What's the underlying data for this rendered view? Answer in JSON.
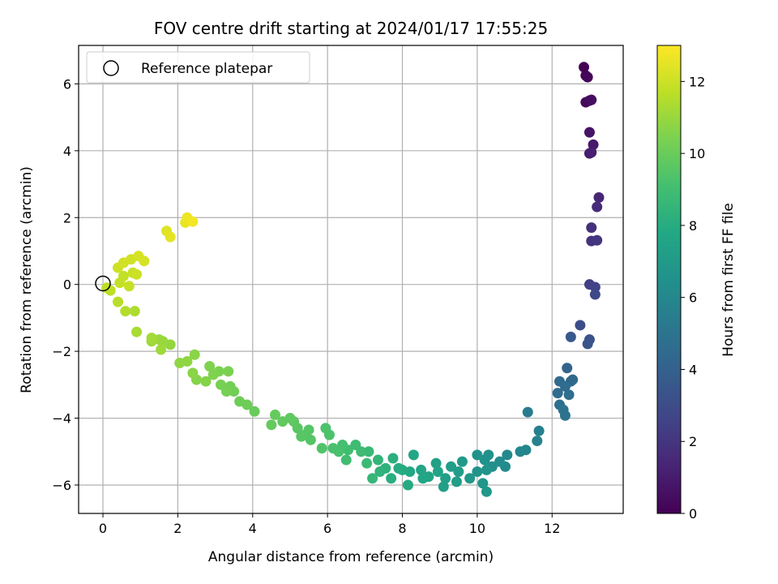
{
  "chart_data": {
    "type": "scatter",
    "title": "FOV centre drift starting at 2024/01/17 17:55:25",
    "xlabel": "Angular distance from reference (arcmin)",
    "ylabel": "Rotation from reference (arcmin)",
    "xlim": [
      -0.65,
      13.9
    ],
    "ylim": [
      -6.85,
      7.15
    ],
    "xticks": [
      0,
      2,
      4,
      6,
      8,
      10,
      12
    ],
    "yticks": [
      -6,
      -4,
      -2,
      0,
      2,
      4,
      6
    ],
    "grid": true,
    "legend": {
      "position": "top-left",
      "entries": [
        "Reference platepar"
      ]
    },
    "reference_point": {
      "x": 0,
      "y": 0
    },
    "colorbar": {
      "label": "Hours from first FF file",
      "range": [
        0,
        13
      ],
      "ticks": [
        0,
        2,
        4,
        6,
        8,
        10,
        12
      ],
      "colormap": "viridis"
    },
    "points": [
      [
        12.85,
        6.5,
        0.0
      ],
      [
        12.9,
        6.25,
        0.1
      ],
      [
        12.95,
        6.2,
        0.2
      ],
      [
        12.9,
        5.45,
        0.3
      ],
      [
        13.0,
        5.5,
        0.4
      ],
      [
        13.05,
        5.52,
        0.5
      ],
      [
        13.0,
        4.55,
        0.7
      ],
      [
        13.1,
        4.18,
        0.9
      ],
      [
        13.0,
        3.92,
        1.0
      ],
      [
        13.05,
        3.95,
        1.1
      ],
      [
        13.25,
        2.6,
        1.4
      ],
      [
        13.2,
        2.32,
        1.6
      ],
      [
        13.05,
        1.7,
        1.8
      ],
      [
        13.05,
        1.3,
        1.9
      ],
      [
        13.2,
        1.32,
        2.0
      ],
      [
        13.0,
        0.0,
        2.4
      ],
      [
        13.15,
        -0.08,
        2.6
      ],
      [
        13.15,
        -0.3,
        2.8
      ],
      [
        12.75,
        -1.22,
        3.1
      ],
      [
        13.0,
        -1.65,
        3.3
      ],
      [
        12.95,
        -1.78,
        3.4
      ],
      [
        12.5,
        -1.57,
        3.6
      ],
      [
        12.4,
        -2.5,
        4.1
      ],
      [
        12.5,
        -2.9,
        4.3
      ],
      [
        12.55,
        -2.85,
        4.4
      ],
      [
        12.2,
        -2.9,
        4.5
      ],
      [
        12.35,
        -3.05,
        4.6
      ],
      [
        12.15,
        -3.25,
        4.6
      ],
      [
        12.45,
        -3.3,
        4.7
      ],
      [
        12.2,
        -3.6,
        4.8
      ],
      [
        12.3,
        -3.75,
        4.9
      ],
      [
        12.35,
        -3.92,
        5.0
      ],
      [
        11.35,
        -3.82,
        5.4
      ],
      [
        11.65,
        -4.38,
        5.6
      ],
      [
        11.6,
        -4.68,
        5.7
      ],
      [
        11.3,
        -4.95,
        5.9
      ],
      [
        11.15,
        -5.0,
        6.0
      ],
      [
        10.8,
        -5.1,
        6.1
      ],
      [
        10.75,
        -5.45,
        6.2
      ],
      [
        10.6,
        -5.3,
        6.3
      ],
      [
        10.4,
        -5.45,
        6.4
      ],
      [
        10.2,
        -5.25,
        6.5
      ],
      [
        10.0,
        -5.1,
        6.6
      ],
      [
        10.3,
        -5.1,
        6.5
      ],
      [
        10.0,
        -5.6,
        6.6
      ],
      [
        10.25,
        -5.55,
        6.7
      ],
      [
        10.15,
        -5.95,
        6.8
      ],
      [
        10.25,
        -6.2,
        6.9
      ],
      [
        9.8,
        -5.8,
        6.9
      ],
      [
        9.6,
        -5.3,
        7.0
      ],
      [
        9.5,
        -5.6,
        7.1
      ],
      [
        9.45,
        -5.9,
        7.2
      ],
      [
        9.3,
        -5.45,
        7.2
      ],
      [
        9.15,
        -5.8,
        7.3
      ],
      [
        9.1,
        -6.05,
        7.3
      ],
      [
        8.9,
        -5.35,
        7.4
      ],
      [
        8.95,
        -5.6,
        7.5
      ],
      [
        8.7,
        -5.75,
        7.5
      ],
      [
        8.5,
        -5.55,
        7.6
      ],
      [
        8.55,
        -5.8,
        7.7
      ],
      [
        8.3,
        -5.1,
        7.7
      ],
      [
        8.2,
        -5.6,
        7.8
      ],
      [
        8.0,
        -5.55,
        7.9
      ],
      [
        8.15,
        -6.0,
        7.9
      ],
      [
        7.9,
        -5.5,
        8.0
      ],
      [
        7.7,
        -5.8,
        8.1
      ],
      [
        7.75,
        -5.2,
        8.2
      ],
      [
        7.55,
        -5.5,
        8.3
      ],
      [
        7.4,
        -5.6,
        8.4
      ],
      [
        7.35,
        -5.25,
        8.5
      ],
      [
        7.2,
        -5.8,
        8.6
      ],
      [
        7.1,
        -5.0,
        8.7
      ],
      [
        7.05,
        -5.35,
        8.8
      ],
      [
        6.9,
        -5.0,
        8.9
      ],
      [
        6.75,
        -4.8,
        8.9
      ],
      [
        6.55,
        -4.95,
        9.0
      ],
      [
        6.5,
        -5.25,
        9.0
      ],
      [
        6.4,
        -4.8,
        9.1
      ],
      [
        6.3,
        -5.0,
        9.2
      ],
      [
        6.15,
        -4.9,
        9.2
      ],
      [
        5.95,
        -4.3,
        9.3
      ],
      [
        6.05,
        -4.5,
        9.3
      ],
      [
        5.85,
        -4.9,
        9.4
      ],
      [
        5.55,
        -4.65,
        9.5
      ],
      [
        5.4,
        -4.5,
        9.5
      ],
      [
        5.5,
        -4.35,
        9.5
      ],
      [
        5.3,
        -4.55,
        9.6
      ],
      [
        5.2,
        -4.3,
        9.6
      ],
      [
        5.1,
        -4.1,
        9.7
      ],
      [
        5.0,
        -4.0,
        9.8
      ],
      [
        4.8,
        -4.1,
        9.8
      ],
      [
        4.6,
        -3.9,
        9.9
      ],
      [
        4.5,
        -4.2,
        9.9
      ],
      [
        4.05,
        -3.8,
        10.0
      ],
      [
        3.85,
        -3.6,
        10.1
      ],
      [
        3.65,
        -3.5,
        10.1
      ],
      [
        3.5,
        -3.2,
        10.2
      ],
      [
        3.4,
        -3.05,
        10.2
      ],
      [
        3.3,
        -3.2,
        10.3
      ],
      [
        3.15,
        -3.0,
        10.3
      ],
      [
        3.35,
        -2.6,
        10.4
      ],
      [
        3.1,
        -2.6,
        10.4
      ],
      [
        2.95,
        -2.7,
        10.5
      ],
      [
        2.85,
        -2.45,
        10.5
      ],
      [
        2.75,
        -2.9,
        10.6
      ],
      [
        2.5,
        -2.85,
        10.6
      ],
      [
        2.4,
        -2.65,
        10.7
      ],
      [
        2.45,
        -2.1,
        10.7
      ],
      [
        2.25,
        -2.3,
        10.8
      ],
      [
        2.05,
        -2.35,
        10.8
      ],
      [
        1.8,
        -1.8,
        10.9
      ],
      [
        1.6,
        -1.7,
        11.0
      ],
      [
        1.5,
        -1.65,
        11.0
      ],
      [
        1.55,
        -1.95,
        11.1
      ],
      [
        1.3,
        -1.7,
        11.1
      ],
      [
        1.3,
        -1.6,
        11.2
      ],
      [
        0.9,
        -1.42,
        11.3
      ],
      [
        0.85,
        -0.8,
        11.4
      ],
      [
        0.6,
        -0.8,
        11.5
      ],
      [
        0.4,
        -0.52,
        11.6
      ],
      [
        0.2,
        -0.18,
        11.7
      ],
      [
        0.1,
        -0.1,
        11.7
      ],
      [
        0.45,
        0.05,
        11.8
      ],
      [
        0.55,
        0.25,
        11.8
      ],
      [
        0.7,
        -0.05,
        11.9
      ],
      [
        0.8,
        0.35,
        11.9
      ],
      [
        0.9,
        0.3,
        12.0
      ],
      [
        0.4,
        0.5,
        12.0
      ],
      [
        0.55,
        0.65,
        12.1
      ],
      [
        0.75,
        0.75,
        12.1
      ],
      [
        0.95,
        0.85,
        12.2
      ],
      [
        1.1,
        0.7,
        12.2
      ],
      [
        1.7,
        1.6,
        12.4
      ],
      [
        1.8,
        1.42,
        12.5
      ],
      [
        2.2,
        1.85,
        12.6
      ],
      [
        2.25,
        2.0,
        12.7
      ],
      [
        2.4,
        1.88,
        12.8
      ]
    ]
  }
}
